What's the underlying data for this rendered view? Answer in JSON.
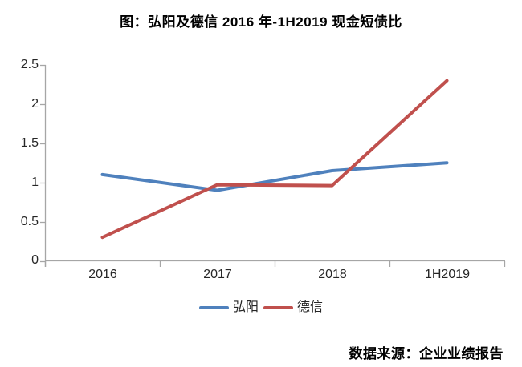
{
  "chart_data": {
    "type": "line",
    "title": "图：弘阳及德信 2016 年-1H2019 现金短债比",
    "source": "数据来源：企业业绩报告",
    "categories": [
      "2016",
      "2017",
      "2018",
      "1H2019"
    ],
    "series": [
      {
        "name": "弘阳",
        "color": "#4F81BD",
        "values": [
          1.1,
          0.9,
          1.15,
          1.25
        ]
      },
      {
        "name": "德信",
        "color": "#C0504D",
        "values": [
          0.3,
          0.97,
          0.96,
          2.3
        ]
      }
    ],
    "ylim": [
      0,
      2.5
    ],
    "y_tick_step": 0.5,
    "y_ticks": [
      "2.5",
      "2",
      "1.5",
      "1",
      "0.5",
      "0"
    ],
    "grid": false,
    "legend_position": "bottom",
    "axis_color": "#A6A6A6",
    "text_color": "#262626",
    "line_width": 4
  }
}
